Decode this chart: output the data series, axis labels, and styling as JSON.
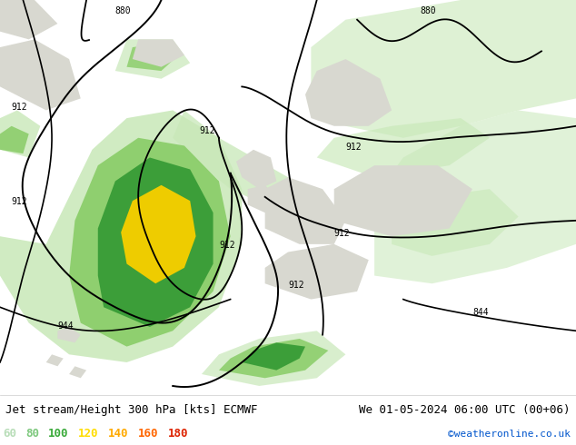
{
  "title_left": "Jet stream/Height 300 hPa [kts] ECMWF",
  "title_right": "We 01-05-2024 06:00 UTC (00+06)",
  "credit": "©weatheronline.co.uk",
  "legend_values": [
    60,
    80,
    100,
    120,
    140,
    160,
    180
  ],
  "legend_colors": [
    "#b8ddb8",
    "#7dc87d",
    "#3aaa3a",
    "#ffdd00",
    "#ffaa00",
    "#ff6600",
    "#dd2200"
  ],
  "bg_color": "#ffffff",
  "map_bg": "#f0f0f0",
  "land_color": "#e8e8e8",
  "contour_color": "#000000",
  "title_fontsize": 9,
  "credit_color": "#0055cc",
  "figsize": [
    6.34,
    4.9
  ],
  "dpi": 100,
  "jet_light_color": "#c8e8b8",
  "jet_med_color": "#88cc66",
  "jet_dark_color": "#339933",
  "jet_yellow_color": "#eecc00",
  "coastline_color": "#aaaaaa",
  "border_color": "#aaaaaa"
}
